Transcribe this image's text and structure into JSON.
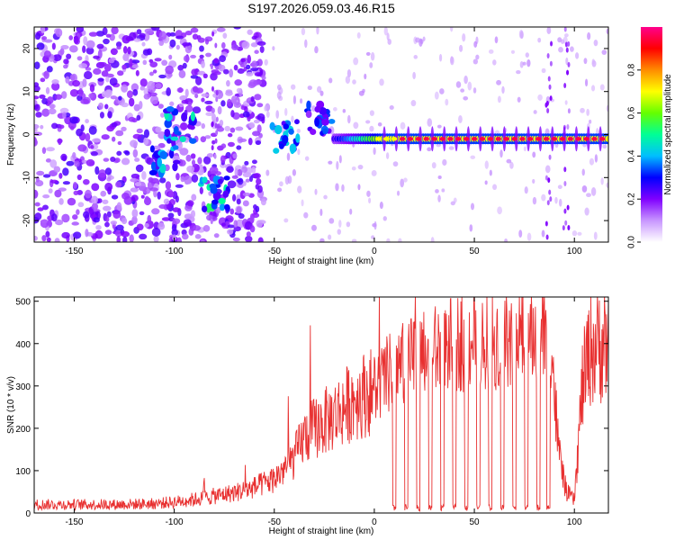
{
  "figure_title": "S197.2026.059.03.46.R15",
  "chart_data": [
    {
      "type": "heatmap",
      "title": "S197.2026.059.03.46.R15",
      "xlabel": "Height of straight line (km)",
      "ylabel": "Frequency (Hz)",
      "xlim": [
        -170,
        117
      ],
      "ylim": [
        -25,
        25
      ],
      "xticks": [
        -150,
        -100,
        -50,
        0,
        50,
        100
      ],
      "yticks": [
        -20,
        -10,
        0,
        10,
        20
      ],
      "colorbar": {
        "label": "Normalized spectral amplitude",
        "range": [
          0.0,
          1.0
        ],
        "ticks": [
          0.0,
          0.2,
          0.4,
          0.6,
          0.8
        ],
        "tick_labels": [
          "0.0",
          "0.2",
          "0.4",
          "0.6",
          "0.8"
        ],
        "colormap": [
          "#ffffff",
          "#8000ff",
          "#0000ff",
          "#00c0ff",
          "#00ff80",
          "#80ff00",
          "#ffff00",
          "#ff8000",
          "#ff0000",
          "#ff0080"
        ]
      },
      "features": [
        {
          "name": "main tone",
          "x_range": [
            -20,
            117
          ],
          "freq_hz": -1,
          "amplitude": 0.95
        },
        {
          "name": "scattered noise",
          "x_range": [
            -170,
            -60
          ],
          "freq_range": [
            -25,
            25
          ],
          "amplitude": 0.3
        },
        {
          "name": "noise cluster",
          "x": -97,
          "freq_hz": 2,
          "amplitude": 0.5
        },
        {
          "name": "noise cluster",
          "x": -105,
          "freq_hz": -6,
          "amplitude": 0.45
        },
        {
          "name": "noise cluster",
          "x": -80,
          "freq_hz": -14,
          "amplitude": 0.55
        },
        {
          "name": "noise cluster",
          "x": -45,
          "freq_hz": 0,
          "amplitude": 0.45
        },
        {
          "name": "noise cluster",
          "x": -28,
          "freq_hz": 4,
          "amplitude": 0.4
        }
      ]
    },
    {
      "type": "line",
      "xlabel": "Height of straight line (km)",
      "ylabel": "SNR (10 * v/v)",
      "xlim": [
        -170,
        117
      ],
      "ylim": [
        0,
        510
      ],
      "xticks": [
        -150,
        -100,
        -50,
        0,
        50,
        100
      ],
      "yticks": [
        0,
        100,
        200,
        300,
        400,
        500
      ],
      "color": "#e83030",
      "series": [
        {
          "name": "SNR",
          "x": [
            -170,
            -150,
            -130,
            -110,
            -100,
            -90,
            -80,
            -70,
            -60,
            -50,
            -40,
            -35,
            -30,
            -20,
            -10,
            0,
            10,
            20,
            30,
            40,
            50,
            60,
            70,
            80,
            88,
            92,
            96,
            100,
            104,
            108,
            117
          ],
          "y": [
            20,
            20,
            20,
            22,
            26,
            32,
            40,
            48,
            60,
            80,
            130,
            180,
            200,
            230,
            270,
            290,
            340,
            360,
            380,
            400,
            410,
            410,
            420,
            420,
            430,
            150,
            50,
            30,
            300,
            390,
            410
          ],
          "dropouts_x": [
            10,
            16,
            22,
            28,
            34,
            40,
            46,
            52,
            58,
            64,
            70,
            76,
            82,
            87
          ]
        }
      ]
    }
  ]
}
